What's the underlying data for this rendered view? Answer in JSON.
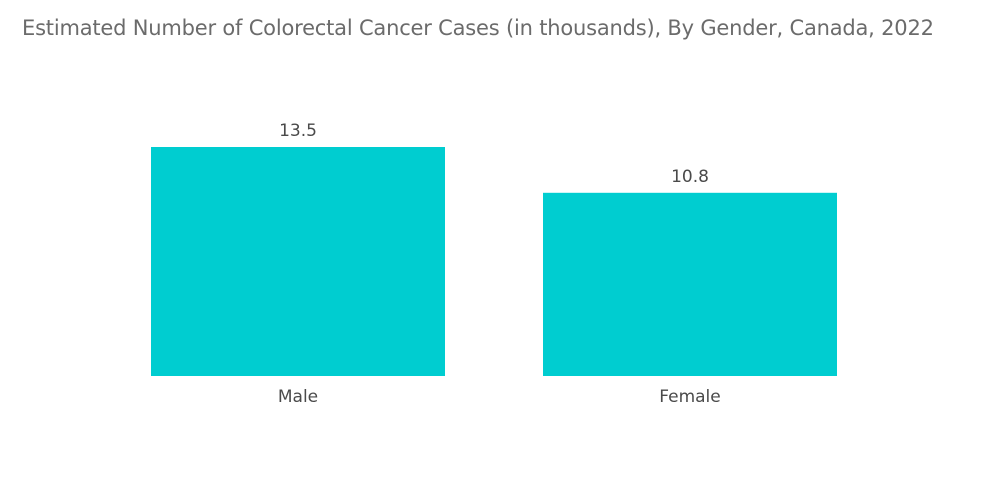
{
  "chart_data": {
    "type": "bar",
    "title": "Estimated Number of Colorectal Cancer Cases (in thousands), By Gender, Canada, 2022",
    "categories": [
      "Male",
      "Female"
    ],
    "values": [
      13.5,
      10.8
    ],
    "value_labels": [
      "13.5",
      "10.8"
    ],
    "xlabel": "",
    "ylabel": "",
    "ylim": [
      0,
      13.5
    ],
    "grid": false,
    "legend": "none",
    "bar_color": "#00cdd0"
  }
}
